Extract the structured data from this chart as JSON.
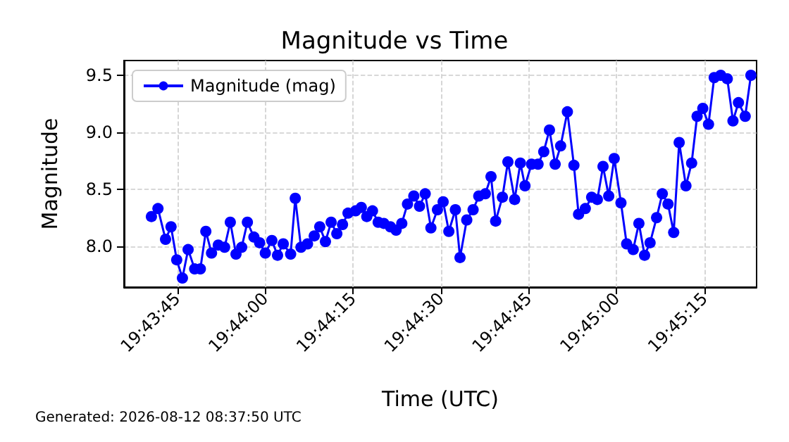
{
  "chart_data": {
    "type": "line",
    "title": "Magnitude vs Time",
    "xlabel": "Time (UTC)",
    "ylabel": "Magnitude",
    "annotations": [
      "Generated: 2026-08-12 08:37:50 UTC"
    ],
    "x": [
      19.72794,
      19.72825,
      19.72861,
      19.72887,
      19.72914,
      19.72941,
      19.72968,
      19.72999,
      19.73026,
      19.73052,
      19.73079,
      19.73111,
      19.73141,
      19.73168,
      19.73195,
      19.73222,
      19.73249,
      19.7328,
      19.73307,
      19.73334,
      19.73365,
      19.73392,
      19.73419,
      19.73454,
      19.73476,
      19.73503,
      19.73534,
      19.73566,
      19.73592,
      19.73619,
      19.73646,
      19.73673,
      19.737,
      19.73726,
      19.73762,
      19.73789,
      19.73815,
      19.73842,
      19.73869,
      19.73896,
      19.73927,
      19.73954,
      19.73981,
      19.74008,
      19.74038,
      19.74065,
      19.74092,
      19.74119,
      19.7415,
      19.74177,
      19.74204,
      19.74235,
      19.74257,
      19.74289,
      19.74319,
      19.74346,
      19.74377,
      19.74404,
      19.74426,
      19.74458,
      19.74484,
      19.74516,
      19.74543,
      19.74565,
      19.74596,
      19.74627,
      19.74654,
      19.74681,
      19.74708,
      19.74734,
      19.74766,
      19.74797,
      19.74819,
      19.74851,
      19.74881,
      19.74908,
      19.74935,
      19.74962,
      19.74988,
      19.7502,
      19.75047,
      19.75078,
      19.75105,
      19.75132,
      19.75158,
      19.75189,
      19.75216,
      19.75243,
      19.7527,
      19.75296,
      19.75328,
      19.75355,
      19.75381,
      19.75408,
      19.75435,
      19.75462,
      19.75493,
      19.75524,
      19.75551,
      19.75577,
      19.75609,
      19.75636
    ],
    "series": [
      {
        "name": "Magnitude (mag)",
        "color": "#0000ff",
        "values": [
          8.26,
          8.33,
          8.06,
          8.17,
          7.88,
          7.72,
          7.97,
          7.8,
          7.8,
          8.13,
          7.94,
          8.01,
          7.99,
          8.21,
          7.93,
          7.99,
          8.21,
          8.08,
          8.03,
          7.94,
          8.05,
          7.92,
          8.02,
          7.93,
          8.42,
          7.99,
          8.02,
          8.09,
          8.17,
          8.04,
          8.21,
          8.11,
          8.19,
          8.29,
          8.31,
          8.34,
          8.26,
          8.31,
          8.21,
          8.2,
          8.17,
          8.14,
          8.2,
          8.37,
          8.44,
          8.35,
          8.46,
          8.16,
          8.32,
          8.39,
          8.13,
          8.32,
          7.9,
          8.23,
          8.32,
          8.44,
          8.46,
          8.61,
          8.22,
          8.43,
          8.74,
          8.41,
          8.73,
          8.53,
          8.72,
          8.72,
          8.83,
          9.02,
          8.72,
          8.88,
          9.18,
          8.71,
          8.28,
          8.33,
          8.43,
          8.41,
          8.7,
          8.44,
          8.77,
          8.38,
          8.02,
          7.97,
          8.2,
          7.92,
          8.03,
          8.25,
          8.46,
          8.37,
          8.12,
          8.91,
          8.53,
          8.73,
          9.14,
          9.21,
          9.07,
          9.48,
          9.5,
          9.47,
          9.1,
          9.26,
          9.14,
          9.5
        ]
      }
    ],
    "xlim": [
      19.72664,
      19.75663
    ],
    "xticks": [
      {
        "value": 19.729167,
        "label": "19:43:45"
      },
      {
        "value": 19.733333,
        "label": "19:44:00"
      },
      {
        "value": 19.7375,
        "label": "19:44:15"
      },
      {
        "value": 19.741667,
        "label": "19:44:30"
      },
      {
        "value": 19.745833,
        "label": "19:44:45"
      },
      {
        "value": 19.75,
        "label": "19:45:00"
      },
      {
        "value": 19.754167,
        "label": "19:45:15"
      }
    ],
    "ylim": [
      7.64,
      9.63
    ],
    "yticks": [
      {
        "value": 8,
        "label": "8.0"
      },
      8.5,
      {
        "value": 9,
        "label": "9.0"
      },
      9.5
    ],
    "grid": true,
    "legend": "top left",
    "marker": "circle",
    "line_style": "solid"
  }
}
